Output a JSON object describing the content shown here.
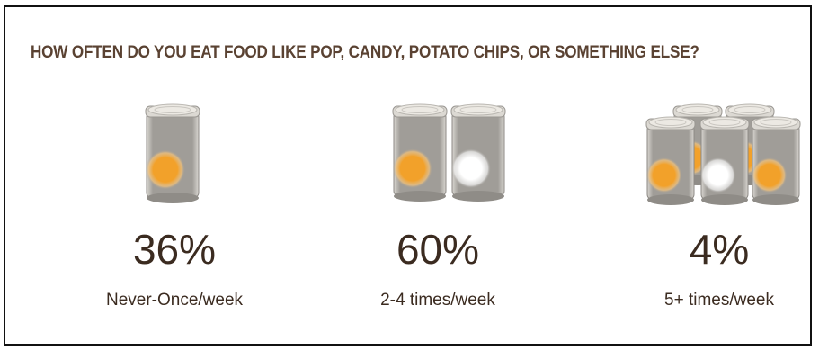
{
  "chart_data": {
    "type": "table",
    "title": "HOW OFTEN DO YOU EAT FOOD LIKE POP, CANDY, POTATO CHIPS, OR SOMETHING ELSE?",
    "categories": [
      "Never-Once/week",
      "2-4 times/week",
      "5+ times/week"
    ],
    "values": [
      36,
      60,
      4
    ],
    "value_labels": [
      "36%",
      "60%",
      "4%"
    ],
    "icon_counts": [
      1,
      2,
      5
    ],
    "colors": {
      "can_body": "#a09d98",
      "can_lid": "#ece9e3",
      "sun_orange": "#f2a12a",
      "sun_white": "#ffffff",
      "text": "#3b2b20",
      "title_text": "#5a4232"
    }
  }
}
